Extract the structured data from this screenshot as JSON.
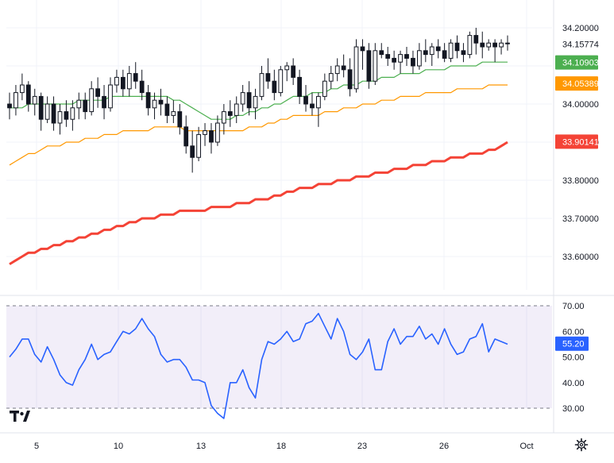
{
  "chart_data": [
    {
      "type": "candlestick",
      "title": "",
      "xlabel": "",
      "ylabel": "",
      "ylim": [
        33.54,
        34.24
      ],
      "x_tick_labels": [
        "5",
        "10",
        "13",
        "18",
        "23",
        "26",
        "Oct"
      ],
      "y_ticks": [
        {
          "value": 34.2,
          "label": "34.20000"
        },
        {
          "value": 34.0,
          "label": "34.00000"
        },
        {
          "value": 33.9,
          "label": "33.90000"
        },
        {
          "value": 33.8,
          "label": "33.80000"
        },
        {
          "value": 33.7,
          "label": "33.70000"
        },
        {
          "value": 33.6,
          "label": "33.60000"
        }
      ],
      "last_price": {
        "value": 34.15774,
        "label": "34.15774"
      },
      "series": [
        {
          "kind": "ohlc",
          "color_up": "#131722",
          "color_down": "#131722",
          "ohlc": [
            [
              34.0,
              34.03,
              33.96,
              33.99
            ],
            [
              33.99,
              34.05,
              33.97,
              34.03
            ],
            [
              34.03,
              34.08,
              34.01,
              34.05
            ],
            [
              34.05,
              34.06,
              33.98,
              34.0
            ],
            [
              34.0,
              34.04,
              33.97,
              34.02
            ],
            [
              34.02,
              34.03,
              33.93,
              33.96
            ],
            [
              33.96,
              34.02,
              33.95,
              34.0
            ],
            [
              34.0,
              34.02,
              33.93,
              33.95
            ],
            [
              33.95,
              34.0,
              33.92,
              33.98
            ],
            [
              33.98,
              34.01,
              33.94,
              33.96
            ],
            [
              33.96,
              34.01,
              33.93,
              33.99
            ],
            [
              33.99,
              34.03,
              33.96,
              34.01
            ],
            [
              34.01,
              34.03,
              33.96,
              33.98
            ],
            [
              33.98,
              34.06,
              33.97,
              34.04
            ],
            [
              34.04,
              34.07,
              33.99,
              34.02
            ],
            [
              34.02,
              34.05,
              33.96,
              33.99
            ],
            [
              33.99,
              34.07,
              33.98,
              34.05
            ],
            [
              34.05,
              34.09,
              34.03,
              34.07
            ],
            [
              34.07,
              34.09,
              34.02,
              34.04
            ],
            [
              34.04,
              34.1,
              34.02,
              34.08
            ],
            [
              34.08,
              34.11,
              34.04,
              34.06
            ],
            [
              34.06,
              34.09,
              34.01,
              34.03
            ],
            [
              34.03,
              34.05,
              33.97,
              33.99
            ],
            [
              33.99,
              34.03,
              33.96,
              34.01
            ],
            [
              34.01,
              34.04,
              33.97,
              34.0
            ],
            [
              34.0,
              34.02,
              33.95,
              33.97
            ],
            [
              33.97,
              34.01,
              33.95,
              33.98
            ],
            [
              33.98,
              34.0,
              33.92,
              33.94
            ],
            [
              33.94,
              33.97,
              33.87,
              33.89
            ],
            [
              33.89,
              33.93,
              33.82,
              33.86
            ],
            [
              33.86,
              33.94,
              33.85,
              33.92
            ],
            [
              33.92,
              33.95,
              33.89,
              33.93
            ],
            [
              33.93,
              33.95,
              33.87,
              33.9
            ],
            [
              33.9,
              33.97,
              33.89,
              33.95
            ],
            [
              33.95,
              34.0,
              33.92,
              33.98
            ],
            [
              33.98,
              34.01,
              33.94,
              33.97
            ],
            [
              33.97,
              34.02,
              33.95,
              34.0
            ],
            [
              34.0,
              34.05,
              33.98,
              34.03
            ],
            [
              34.03,
              34.06,
              33.97,
              33.99
            ],
            [
              33.99,
              34.04,
              33.96,
              34.02
            ],
            [
              34.02,
              34.1,
              34.01,
              34.08
            ],
            [
              34.08,
              34.12,
              34.04,
              34.06
            ],
            [
              34.06,
              34.09,
              34.01,
              34.03
            ],
            [
              34.03,
              34.1,
              34.02,
              34.09
            ],
            [
              34.09,
              34.11,
              34.06,
              34.1
            ],
            [
              34.1,
              34.12,
              34.05,
              34.07
            ],
            [
              34.07,
              34.09,
              34.0,
              34.02
            ],
            [
              34.02,
              34.05,
              33.98,
              34.0
            ],
            [
              34.0,
              34.03,
              33.97,
              33.99
            ],
            [
              33.99,
              34.03,
              33.94,
              34.02
            ],
            [
              34.02,
              34.08,
              34.01,
              34.06
            ],
            [
              34.06,
              34.1,
              34.04,
              34.08
            ],
            [
              34.08,
              34.12,
              34.06,
              34.1
            ],
            [
              34.1,
              34.13,
              34.07,
              34.09
            ],
            [
              34.09,
              34.12,
              34.02,
              34.04
            ],
            [
              34.04,
              34.17,
              34.03,
              34.15
            ],
            [
              34.15,
              34.17,
              34.09,
              34.14
            ],
            [
              34.14,
              34.16,
              34.04,
              34.06
            ],
            [
              34.06,
              34.16,
              34.05,
              34.14
            ],
            [
              34.14,
              34.16,
              34.12,
              34.13
            ],
            [
              34.13,
              34.15,
              34.1,
              34.12
            ],
            [
              34.12,
              34.14,
              34.09,
              34.11
            ],
            [
              34.11,
              34.14,
              34.08,
              34.13
            ],
            [
              34.13,
              34.15,
              34.1,
              34.12
            ],
            [
              34.12,
              34.14,
              34.08,
              34.1
            ],
            [
              34.1,
              34.16,
              34.09,
              34.14
            ],
            [
              34.14,
              34.17,
              34.11,
              34.13
            ],
            [
              34.13,
              34.16,
              34.1,
              34.15
            ],
            [
              34.15,
              34.17,
              34.12,
              34.14
            ],
            [
              34.14,
              34.16,
              34.11,
              34.12
            ],
            [
              34.12,
              34.17,
              34.11,
              34.16
            ],
            [
              34.16,
              34.18,
              34.12,
              34.14
            ],
            [
              34.14,
              34.16,
              34.11,
              34.13
            ],
            [
              34.13,
              34.19,
              34.12,
              34.18
            ],
            [
              34.18,
              34.2,
              34.13,
              34.16
            ],
            [
              34.16,
              34.19,
              34.12,
              34.15
            ],
            [
              34.15,
              34.17,
              34.14,
              34.16
            ],
            [
              34.16,
              34.17,
              34.11,
              34.15
            ],
            [
              34.15,
              34.17,
              34.13,
              34.16
            ],
            [
              34.16,
              34.18,
              34.14,
              34.16
            ]
          ]
        },
        {
          "kind": "ma",
          "name": "",
          "color": "#4caf50",
          "tag": {
            "value": 34.10903,
            "label": "34.10903"
          },
          "values": [
            33.99,
            33.99,
            33.99,
            34.0,
            34.0,
            34.0,
            34.0,
            34.0,
            34.0,
            34.0,
            34.0,
            34.01,
            34.01,
            34.01,
            34.01,
            34.01,
            34.02,
            34.02,
            34.02,
            34.02,
            34.02,
            34.02,
            34.02,
            34.02,
            34.02,
            34.02,
            34.01,
            34.01,
            34.0,
            33.99,
            33.98,
            33.97,
            33.96,
            33.96,
            33.96,
            33.96,
            33.97,
            33.97,
            33.98,
            33.98,
            33.99,
            33.99,
            34.0,
            34.0,
            34.01,
            34.02,
            34.02,
            34.02,
            34.03,
            34.03,
            34.03,
            34.04,
            34.04,
            34.05,
            34.05,
            34.05,
            34.06,
            34.06,
            34.06,
            34.07,
            34.07,
            34.07,
            34.08,
            34.08,
            34.08,
            34.08,
            34.09,
            34.09,
            34.09,
            34.09,
            34.1,
            34.1,
            34.1,
            34.1,
            34.1,
            34.11,
            34.11,
            34.11,
            34.11,
            34.11
          ]
        },
        {
          "kind": "ma",
          "name": "",
          "color": "#ff9800",
          "tag": {
            "value": 34.05389,
            "label": "34.05389"
          },
          "values": [
            33.84,
            33.85,
            33.86,
            33.87,
            33.87,
            33.88,
            33.89,
            33.89,
            33.89,
            33.9,
            33.9,
            33.9,
            33.91,
            33.91,
            33.91,
            33.92,
            33.92,
            33.92,
            33.93,
            33.93,
            33.93,
            33.93,
            33.93,
            33.94,
            33.94,
            33.94,
            33.94,
            33.94,
            33.93,
            33.93,
            33.93,
            33.93,
            33.93,
            33.93,
            33.93,
            33.93,
            33.93,
            33.93,
            33.94,
            33.94,
            33.94,
            33.95,
            33.95,
            33.96,
            33.96,
            33.97,
            33.97,
            33.97,
            33.97,
            33.97,
            33.98,
            33.98,
            33.98,
            33.99,
            33.99,
            33.99,
            34.0,
            34.0,
            34.0,
            34.01,
            34.01,
            34.01,
            34.02,
            34.02,
            34.02,
            34.02,
            34.03,
            34.03,
            34.03,
            34.03,
            34.03,
            34.04,
            34.04,
            34.04,
            34.04,
            34.04,
            34.05,
            34.05,
            34.05,
            34.05
          ]
        },
        {
          "kind": "ma",
          "name": "",
          "color": "#f44336",
          "tag": {
            "value": 33.90141,
            "label": "33.90141"
          },
          "values": [
            33.58,
            33.59,
            33.6,
            33.61,
            33.61,
            33.62,
            33.62,
            33.63,
            33.63,
            33.64,
            33.64,
            33.65,
            33.65,
            33.66,
            33.66,
            33.67,
            33.67,
            33.68,
            33.68,
            33.69,
            33.69,
            33.7,
            33.7,
            33.7,
            33.71,
            33.71,
            33.71,
            33.72,
            33.72,
            33.72,
            33.72,
            33.72,
            33.73,
            33.73,
            33.73,
            33.73,
            33.74,
            33.74,
            33.74,
            33.75,
            33.75,
            33.75,
            33.76,
            33.76,
            33.77,
            33.77,
            33.78,
            33.78,
            33.78,
            33.79,
            33.79,
            33.79,
            33.8,
            33.8,
            33.8,
            33.81,
            33.81,
            33.81,
            33.82,
            33.82,
            33.82,
            33.83,
            33.83,
            33.83,
            33.84,
            33.84,
            33.84,
            33.85,
            33.85,
            33.85,
            33.86,
            33.86,
            33.86,
            33.87,
            33.87,
            33.87,
            33.88,
            33.88,
            33.89,
            33.9
          ]
        }
      ]
    },
    {
      "type": "line",
      "title": "",
      "ylim": [
        23,
        75
      ],
      "band": [
        30,
        70
      ],
      "y_ticks": [
        {
          "value": 70,
          "label": "70.00"
        },
        {
          "value": 60,
          "label": "60.00"
        },
        {
          "value": 50,
          "label": "50.00"
        },
        {
          "value": 40,
          "label": "40.00"
        },
        {
          "value": 30,
          "label": "30.00"
        }
      ],
      "series": [
        {
          "name": "",
          "color": "#2962ff",
          "tag": {
            "value": 55.2,
            "label": "55.20"
          },
          "values": [
            50,
            53,
            57,
            57,
            51,
            48,
            54,
            49,
            43,
            40,
            39,
            45,
            49,
            55,
            49,
            51,
            52,
            56,
            60,
            59,
            61,
            65,
            61,
            58,
            51,
            48,
            49,
            49,
            46,
            41,
            41,
            40,
            31,
            28,
            26,
            40,
            40,
            45,
            38,
            34,
            49,
            56,
            55,
            57,
            60,
            56,
            57,
            63,
            64,
            67,
            62,
            57,
            65,
            60,
            51,
            49,
            52,
            57,
            45,
            45,
            56,
            61,
            55,
            58,
            58,
            62,
            57,
            59,
            55,
            61,
            55,
            51,
            52,
            57,
            58,
            63,
            52,
            57,
            56,
            55
          ]
        }
      ]
    }
  ],
  "ui": {
    "logo": "tradingview-logo-icon",
    "settings": "gear-icon"
  }
}
